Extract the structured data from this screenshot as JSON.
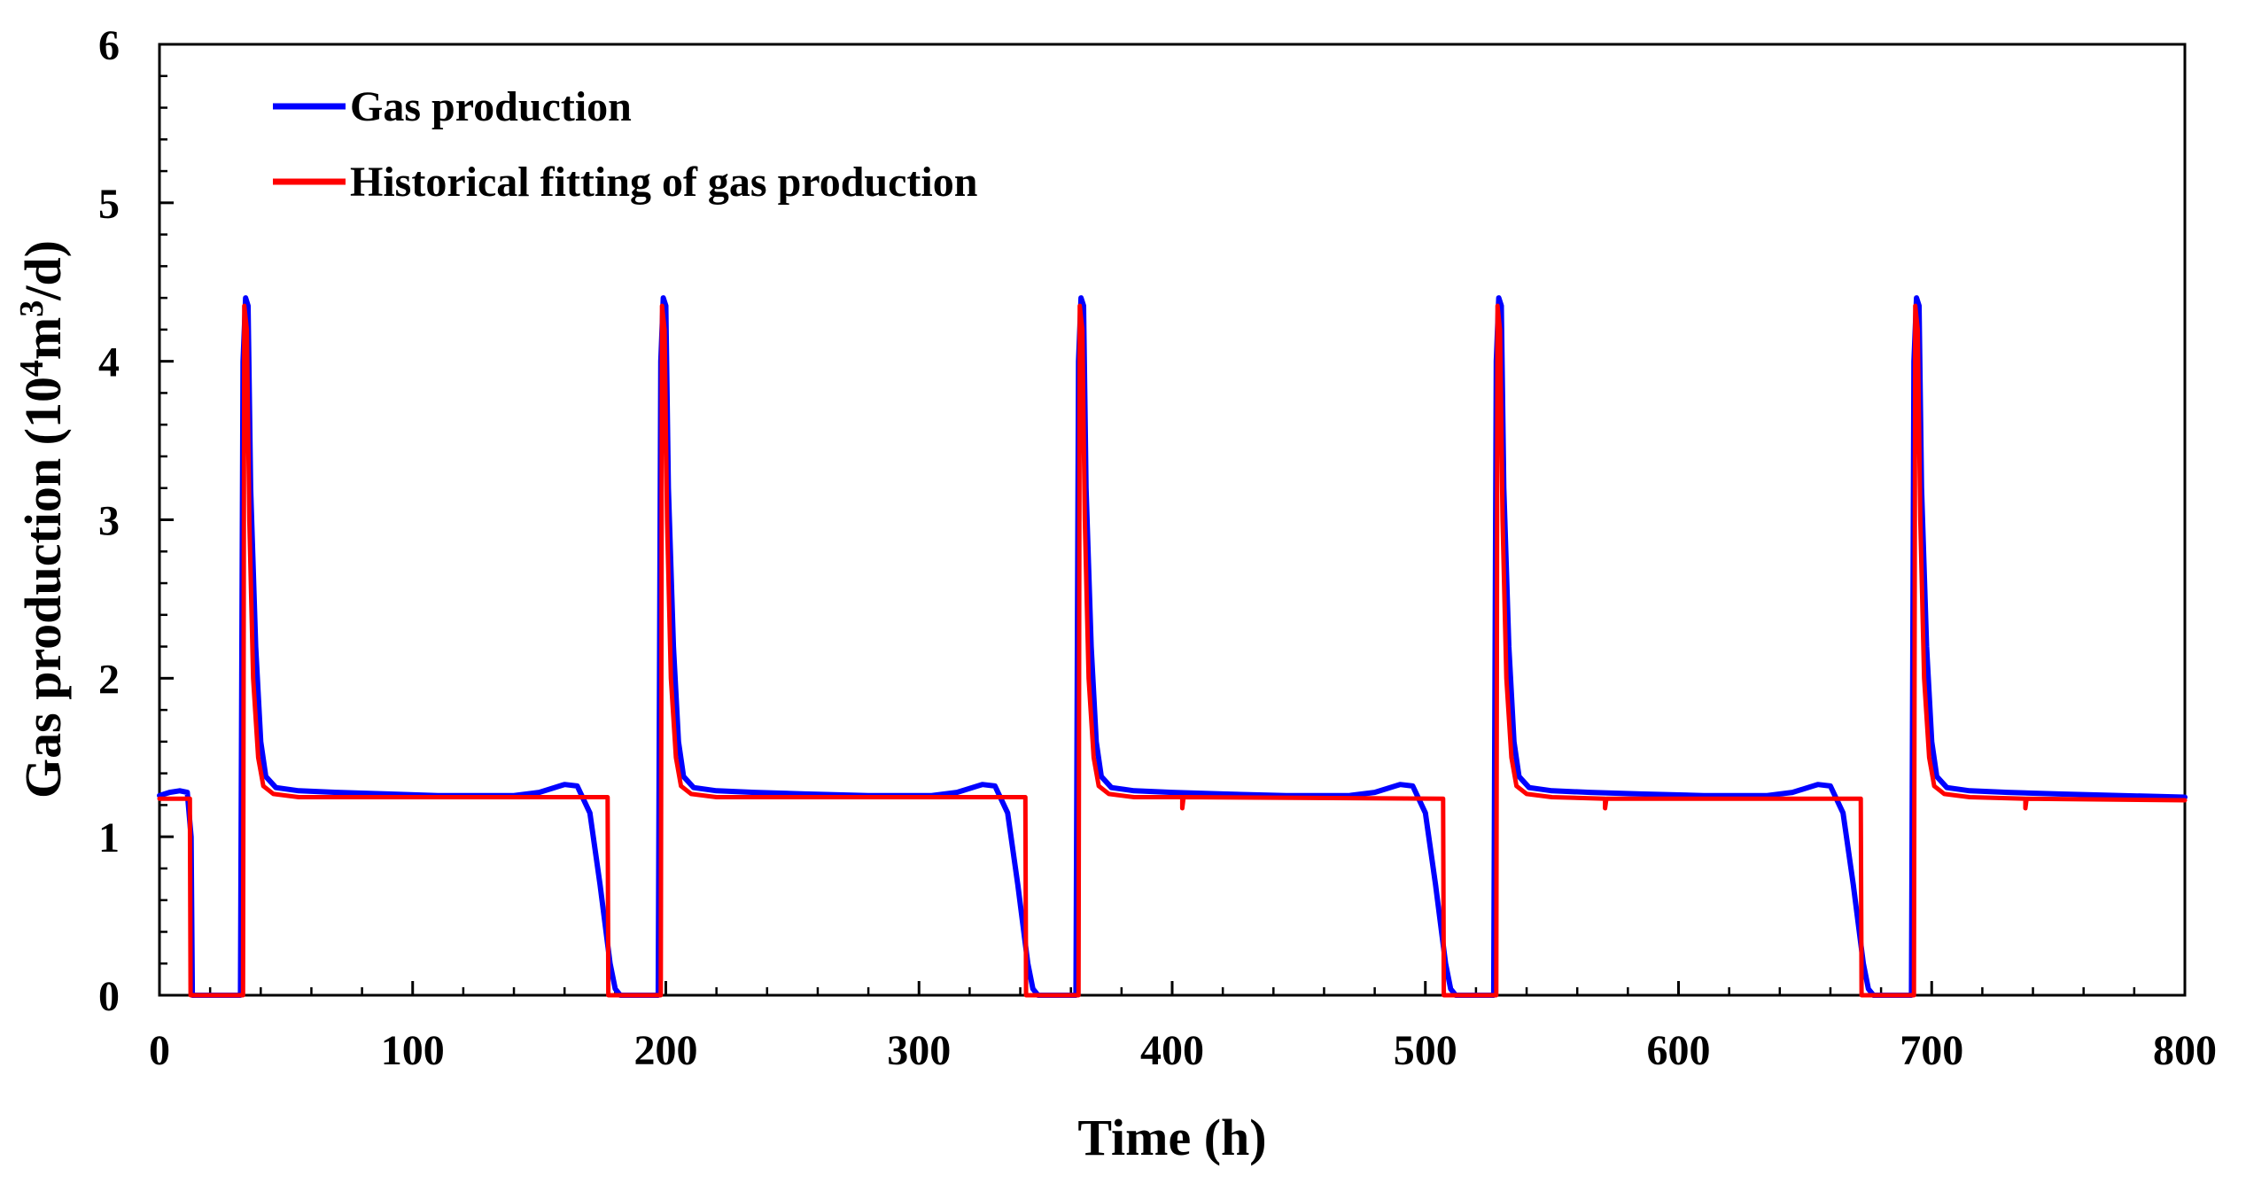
{
  "chart_data": {
    "type": "line",
    "title": "",
    "xlabel": "Time (h)",
    "ylabel_main": "Gas production (10",
    "ylabel_sup1": "4",
    "ylabel_mid": "m",
    "ylabel_sup2": "3",
    "ylabel_end": "/d)",
    "xlim": [
      0,
      800
    ],
    "ylim": [
      0,
      6
    ],
    "x_ticks": [
      0,
      100,
      200,
      300,
      400,
      500,
      600,
      700,
      800
    ],
    "y_ticks": [
      0,
      1,
      2,
      3,
      4,
      5,
      6
    ],
    "grid": false,
    "legend_position": "top-left",
    "series": [
      {
        "name": "Gas production",
        "color": "#0000ff",
        "points": [
          [
            0,
            1.26
          ],
          [
            4,
            1.28
          ],
          [
            8,
            1.29
          ],
          [
            11,
            1.28
          ],
          [
            12.5,
            1.0
          ],
          [
            13,
            0
          ],
          [
            32,
            0
          ],
          [
            33,
            4.0
          ],
          [
            34,
            4.4
          ],
          [
            35,
            4.35
          ],
          [
            36,
            3.2
          ],
          [
            38,
            2.2
          ],
          [
            40,
            1.6
          ],
          [
            42,
            1.38
          ],
          [
            46,
            1.31
          ],
          [
            55,
            1.29
          ],
          [
            70,
            1.28
          ],
          [
            90,
            1.27
          ],
          [
            110,
            1.26
          ],
          [
            140,
            1.26
          ],
          [
            150,
            1.28
          ],
          [
            160,
            1.33
          ],
          [
            165,
            1.32
          ],
          [
            170,
            1.15
          ],
          [
            174,
            0.7
          ],
          [
            178,
            0.2
          ],
          [
            180,
            0.04
          ],
          [
            182,
            0
          ],
          [
            197,
            0
          ],
          [
            198,
            4.0
          ],
          [
            199,
            4.4
          ],
          [
            200,
            4.35
          ],
          [
            201,
            3.2
          ],
          [
            203,
            2.2
          ],
          [
            205,
            1.6
          ],
          [
            207,
            1.38
          ],
          [
            211,
            1.31
          ],
          [
            220,
            1.29
          ],
          [
            235,
            1.28
          ],
          [
            255,
            1.27
          ],
          [
            280,
            1.26
          ],
          [
            305,
            1.26
          ],
          [
            315,
            1.28
          ],
          [
            325,
            1.33
          ],
          [
            330,
            1.32
          ],
          [
            335,
            1.15
          ],
          [
            339,
            0.7
          ],
          [
            343,
            0.2
          ],
          [
            345,
            0.04
          ],
          [
            347,
            0
          ],
          [
            362,
            0
          ],
          [
            363,
            4.0
          ],
          [
            364,
            4.4
          ],
          [
            365,
            4.35
          ],
          [
            366,
            3.2
          ],
          [
            368,
            2.2
          ],
          [
            370,
            1.6
          ],
          [
            372,
            1.38
          ],
          [
            376,
            1.31
          ],
          [
            385,
            1.29
          ],
          [
            400,
            1.28
          ],
          [
            420,
            1.27
          ],
          [
            445,
            1.26
          ],
          [
            470,
            1.26
          ],
          [
            480,
            1.28
          ],
          [
            490,
            1.33
          ],
          [
            495,
            1.32
          ],
          [
            500,
            1.15
          ],
          [
            504,
            0.7
          ],
          [
            508,
            0.2
          ],
          [
            510,
            0.04
          ],
          [
            512,
            0
          ],
          [
            527,
            0
          ],
          [
            528,
            4.0
          ],
          [
            529,
            4.4
          ],
          [
            530,
            4.35
          ],
          [
            531,
            3.2
          ],
          [
            533,
            2.2
          ],
          [
            535,
            1.6
          ],
          [
            537,
            1.38
          ],
          [
            541,
            1.31
          ],
          [
            550,
            1.29
          ],
          [
            565,
            1.28
          ],
          [
            585,
            1.27
          ],
          [
            610,
            1.26
          ],
          [
            635,
            1.26
          ],
          [
            645,
            1.28
          ],
          [
            655,
            1.33
          ],
          [
            660,
            1.32
          ],
          [
            665,
            1.15
          ],
          [
            669,
            0.7
          ],
          [
            673,
            0.2
          ],
          [
            675,
            0.04
          ],
          [
            677,
            0
          ],
          [
            692,
            0
          ],
          [
            693,
            4.0
          ],
          [
            694,
            4.4
          ],
          [
            695,
            4.35
          ],
          [
            696,
            3.2
          ],
          [
            698,
            2.2
          ],
          [
            700,
            1.6
          ],
          [
            702,
            1.38
          ],
          [
            706,
            1.31
          ],
          [
            715,
            1.29
          ],
          [
            730,
            1.28
          ],
          [
            750,
            1.27
          ],
          [
            775,
            1.26
          ],
          [
            800,
            1.25
          ]
        ]
      },
      {
        "name": "Historical fitting of gas production",
        "color": "#ff0000",
        "points": [
          [
            0,
            1.24
          ],
          [
            12,
            1.24
          ],
          [
            12.3,
            0
          ],
          [
            33,
            0
          ],
          [
            33.5,
            4.35
          ],
          [
            34.5,
            4.2
          ],
          [
            35.5,
            3.0
          ],
          [
            37,
            2.0
          ],
          [
            39,
            1.5
          ],
          [
            41,
            1.32
          ],
          [
            45,
            1.27
          ],
          [
            55,
            1.25
          ],
          [
            100,
            1.25
          ],
          [
            177,
            1.25
          ],
          [
            177.3,
            0
          ],
          [
            198,
            0
          ],
          [
            198.5,
            4.35
          ],
          [
            199.5,
            4.2
          ],
          [
            200.5,
            3.0
          ],
          [
            202,
            2.0
          ],
          [
            204,
            1.5
          ],
          [
            206,
            1.32
          ],
          [
            210,
            1.27
          ],
          [
            220,
            1.25
          ],
          [
            342,
            1.25
          ],
          [
            342.3,
            0
          ],
          [
            363,
            0
          ],
          [
            363.5,
            4.35
          ],
          [
            364.5,
            4.2
          ],
          [
            365.5,
            3.0
          ],
          [
            367,
            2.0
          ],
          [
            369,
            1.5
          ],
          [
            371,
            1.32
          ],
          [
            375,
            1.27
          ],
          [
            385,
            1.25
          ],
          [
            404,
            1.25
          ],
          [
            404,
            1.18
          ],
          [
            404.5,
            1.25
          ],
          [
            507,
            1.24
          ],
          [
            507.3,
            0
          ],
          [
            528,
            0
          ],
          [
            528.5,
            4.35
          ],
          [
            529.5,
            4.2
          ],
          [
            530.5,
            3.0
          ],
          [
            532,
            2.0
          ],
          [
            534,
            1.5
          ],
          [
            536,
            1.32
          ],
          [
            540,
            1.27
          ],
          [
            550,
            1.25
          ],
          [
            571,
            1.24
          ],
          [
            571,
            1.18
          ],
          [
            571.5,
            1.24
          ],
          [
            672,
            1.24
          ],
          [
            672.3,
            0
          ],
          [
            693,
            0
          ],
          [
            693.5,
            4.35
          ],
          [
            694.5,
            4.2
          ],
          [
            695.5,
            3.0
          ],
          [
            697,
            2.0
          ],
          [
            699,
            1.5
          ],
          [
            701,
            1.32
          ],
          [
            705,
            1.27
          ],
          [
            715,
            1.25
          ],
          [
            737,
            1.24
          ],
          [
            737,
            1.18
          ],
          [
            737.5,
            1.24
          ],
          [
            800,
            1.23
          ]
        ]
      }
    ]
  }
}
